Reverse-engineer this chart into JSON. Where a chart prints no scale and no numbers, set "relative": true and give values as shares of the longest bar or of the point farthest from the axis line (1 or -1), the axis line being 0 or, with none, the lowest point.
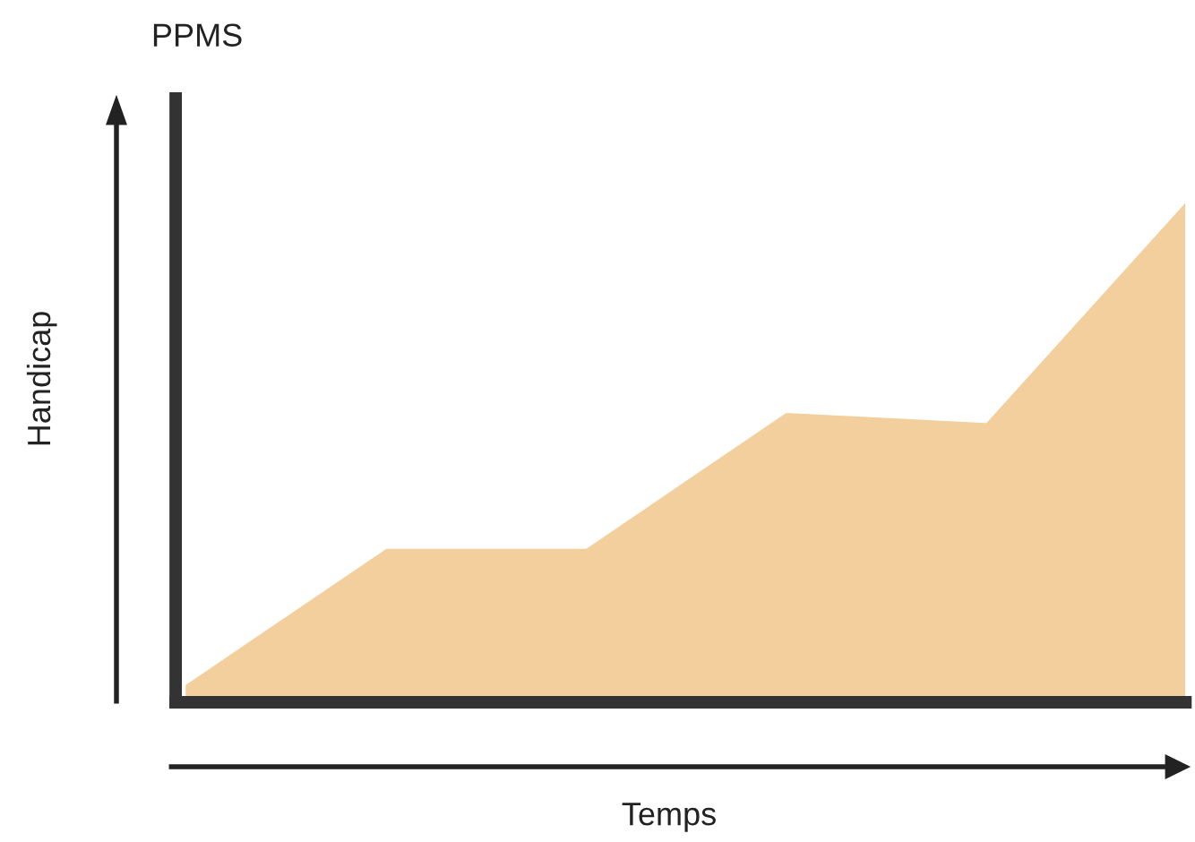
{
  "chart_data": {
    "type": "area",
    "title": "PPMS",
    "xlabel": "Temps",
    "ylabel": "Handicap",
    "relative": true,
    "categories": [
      null,
      null,
      null,
      null,
      null,
      null
    ],
    "series": [
      {
        "color": "#f2cf9c",
        "values": [
          0.04,
          0.31,
          0.31,
          0.58,
          0.56,
          1.0
        ]
      }
    ],
    "grid": false,
    "legend": false
  }
}
